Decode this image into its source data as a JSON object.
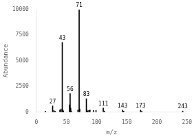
{
  "chart_data": {
    "type": "bar",
    "x_label": "m/z",
    "y_label": "Abundance",
    "x": [
      15,
      27,
      29,
      31,
      39,
      41,
      43,
      44,
      45,
      55,
      56,
      57,
      58,
      69,
      71,
      72,
      83,
      84,
      85,
      87,
      89,
      95,
      99,
      111,
      113,
      143,
      145,
      173,
      175,
      243
    ],
    "values": [
      80,
      600,
      150,
      80,
      200,
      300,
      6800,
      200,
      100,
      700,
      1800,
      400,
      100,
      200,
      10000,
      300,
      1300,
      200,
      100,
      150,
      200,
      150,
      150,
      400,
      100,
      200,
      80,
      200,
      80,
      100
    ],
    "color": "#000000",
    "xlim": [
      0,
      250
    ],
    "ylim": [
      0,
      10000
    ],
    "xticks": [
      0,
      50,
      100,
      150,
      200,
      250
    ],
    "yticks": [
      0,
      2500,
      5000,
      7500,
      10000
    ],
    "grid": false,
    "annotations": [
      {
        "x": 27,
        "y": 600,
        "text": "27"
      },
      {
        "x": 43,
        "y": 6800,
        "text": "43"
      },
      {
        "x": 56,
        "y": 1800,
        "text": "56"
      },
      {
        "x": 71,
        "y": 10000,
        "text": "71"
      },
      {
        "x": 83,
        "y": 1300,
        "text": "83"
      },
      {
        "x": 111,
        "y": 400,
        "text": "111"
      },
      {
        "x": 143,
        "y": 200,
        "text": "143"
      },
      {
        "x": 173,
        "y": 200,
        "text": "173"
      },
      {
        "x": 243,
        "y": 100,
        "text": "243"
      }
    ]
  }
}
